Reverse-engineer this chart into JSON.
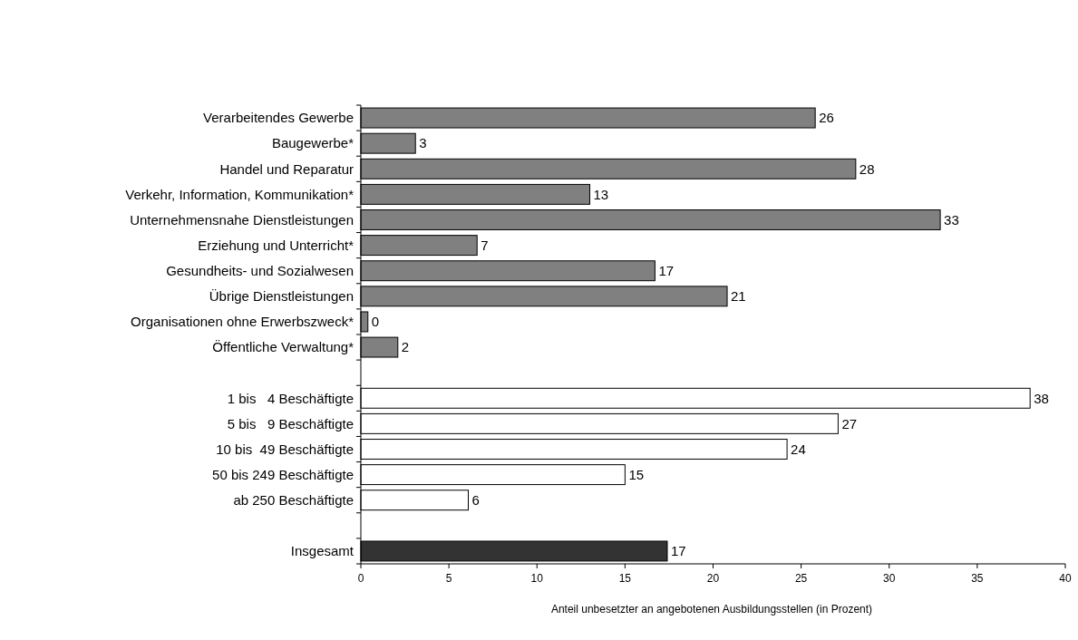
{
  "chart_data": {
    "type": "bar",
    "orientation": "horizontal",
    "xlabel": "Anteil unbesetzter an angebotenen Ausbildungsstellen (in Prozent)",
    "categories": [
      "Verarbeitendes Gewerbe",
      "Baugewerbe*",
      "Handel und Reparatur",
      "Verkehr, Information, Kommunikation*",
      "Unternehmensnahe Dienstleistungen",
      "Erziehung und Unterricht*",
      "Gesundheits- und Sozialwesen",
      "Übrige Dienstleistungen",
      "Organisationen ohne Erwerbszweck*",
      "Öffentliche Verwaltung*",
      null,
      "1 bis   4 Beschäftigte",
      "5 bis   9 Beschäftigte",
      "10 bis  49 Beschäftigte",
      "50 bis 249 Beschäftigte",
      "ab 250 Beschäftigte",
      null,
      "Insgesamt"
    ],
    "values": [
      25.8,
      3.1,
      28.1,
      13.0,
      32.9,
      6.6,
      16.7,
      20.8,
      0.4,
      2.1,
      null,
      38.0,
      27.1,
      24.2,
      15.0,
      6.1,
      null,
      17.4
    ],
    "value_labels": [
      "26",
      "3",
      "28",
      "13",
      "33",
      "7",
      "17",
      "21",
      "0",
      "2",
      null,
      "38",
      "27",
      "24",
      "15",
      "6",
      null,
      "17"
    ],
    "colors": [
      "#808080",
      "#808080",
      "#808080",
      "#808080",
      "#808080",
      "#808080",
      "#808080",
      "#808080",
      "#808080",
      "#808080",
      null,
      "#ffffff",
      "#ffffff",
      "#ffffff",
      "#ffffff",
      "#ffffff",
      null,
      "#333333"
    ],
    "xlim": [
      0,
      40
    ],
    "xticks": [
      0,
      5,
      10,
      15,
      20,
      25,
      30,
      35,
      40
    ],
    "grid": false
  }
}
